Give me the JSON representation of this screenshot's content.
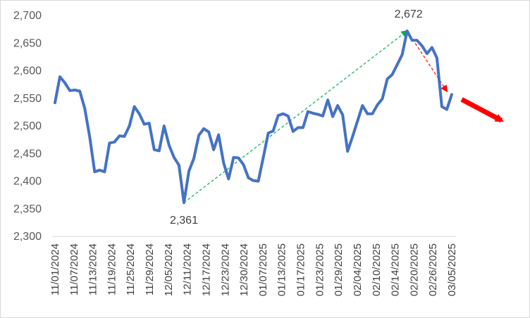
{
  "chart_data": {
    "type": "line",
    "title": "",
    "xlabel": "",
    "ylabel": "",
    "ylim": [
      2300,
      2700
    ],
    "y_ticks": [
      "2,300",
      "2,350",
      "2,400",
      "2,450",
      "2,500",
      "2,550",
      "2,600",
      "2,650",
      "2,700"
    ],
    "y_tick_values": [
      2300,
      2350,
      2400,
      2450,
      2500,
      2550,
      2600,
      2650,
      2700
    ],
    "x_tick_labels": [
      "11/01/2024",
      "11/07/2024",
      "11/13/2024",
      "11/19/2024",
      "11/25/2024",
      "11/29/2024",
      "12/05/2024",
      "12/11/2024",
      "12/17/2024",
      "12/23/2024",
      "12/30/2024",
      "01/07/2025",
      "01/13/2025",
      "01/17/2025",
      "01/23/2025",
      "01/29/2025",
      "02/04/2025",
      "02/10/2025",
      "02/14/2025",
      "02/20/2025",
      "02/26/2025",
      "03/05/2025"
    ],
    "grid": false,
    "line_color": "#4472C4",
    "series": [
      {
        "values": [
          2542,
          2589,
          2578,
          2564,
          2565,
          2563,
          2532,
          2480,
          2417,
          2420,
          2417,
          2469,
          2471,
          2482,
          2481,
          2500,
          2535,
          2522,
          2503,
          2505,
          2457,
          2455,
          2500,
          2465,
          2443,
          2429,
          2361,
          2418,
          2441,
          2483,
          2495,
          2489,
          2457,
          2484,
          2433,
          2404,
          2443,
          2442,
          2430,
          2406,
          2401,
          2400,
          2443,
          2487,
          2491,
          2519,
          2522,
          2518,
          2490,
          2497,
          2497,
          2526,
          2523,
          2521,
          2518,
          2547,
          2517,
          2537,
          2520,
          2454,
          2481,
          2509,
          2537,
          2522,
          2522,
          2538,
          2549,
          2585,
          2593,
          2611,
          2629,
          2672,
          2655,
          2655,
          2645,
          2631,
          2642,
          2623,
          2535,
          2530,
          2557
        ]
      }
    ],
    "annotations": [
      {
        "type": "data-label",
        "text": "2,361",
        "index": 26,
        "value": 2361
      },
      {
        "type": "data-label",
        "text": "2,672",
        "index": 71,
        "value": 2672
      },
      {
        "type": "trend-arrow",
        "style": "dashed",
        "color": "#00B050",
        "from_index": 26,
        "from_value": 2361,
        "to_index": 71,
        "to_value": 2672
      },
      {
        "type": "trend-arrow",
        "style": "dashed",
        "color": "#FF0000",
        "from_index": 71,
        "from_value": 2672,
        "to_index": 79,
        "to_value": 2563
      },
      {
        "type": "trend-arrow",
        "style": "solid",
        "color": "#FF0000",
        "from_index": 82,
        "from_value": 2548,
        "to_index": 90,
        "to_value": 2510
      }
    ]
  }
}
